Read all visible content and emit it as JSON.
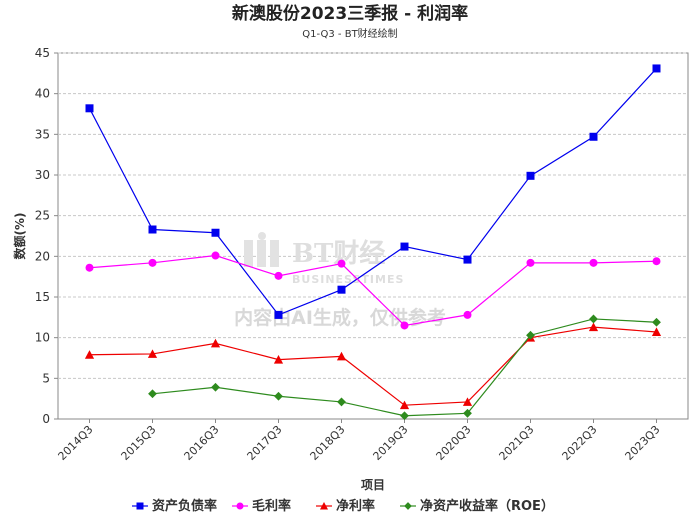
{
  "chart_data": {
    "type": "line",
    "title": "新澳股份2023三季报 - 利润率",
    "subtitle": "Q1-Q3 - BT财经绘制",
    "xlabel": "项目",
    "ylabel": "数额(%)",
    "ylim": [
      0,
      45
    ],
    "yticks": [
      0,
      5,
      10,
      15,
      20,
      25,
      30,
      35,
      40,
      45
    ],
    "grid": true,
    "legend_position": "bottom",
    "categories": [
      "2014Q3",
      "2015Q3",
      "2016Q3",
      "2017Q3",
      "2018Q3",
      "2019Q3",
      "2020Q3",
      "2021Q3",
      "2022Q3",
      "2023Q3"
    ],
    "series": [
      {
        "name": "资产负债率",
        "color": "#0000ee",
        "marker": "square",
        "values": [
          38.2,
          23.3,
          22.9,
          12.8,
          15.9,
          21.2,
          19.6,
          29.9,
          34.7,
          43.1
        ]
      },
      {
        "name": "毛利率",
        "color": "#ff00ff",
        "marker": "circle",
        "values": [
          18.6,
          19.2,
          20.1,
          17.6,
          19.1,
          11.5,
          12.8,
          19.2,
          19.2,
          19.4
        ]
      },
      {
        "name": "净利率",
        "color": "#ee0000",
        "marker": "triangle",
        "values": [
          7.9,
          8.0,
          9.3,
          7.3,
          7.7,
          1.7,
          2.1,
          10.0,
          11.3,
          10.7
        ]
      },
      {
        "name": "净资产收益率（ROE）",
        "color": "#2e8b1e",
        "marker": "diamond",
        "values": [
          null,
          3.1,
          3.9,
          2.8,
          2.1,
          0.4,
          0.7,
          10.3,
          12.3,
          11.9
        ]
      }
    ]
  },
  "watermark": {
    "logo_main": "BT财经",
    "logo_sub": "BUSINESSTIMES",
    "notice": "内容由AI生成，仅供参考"
  }
}
